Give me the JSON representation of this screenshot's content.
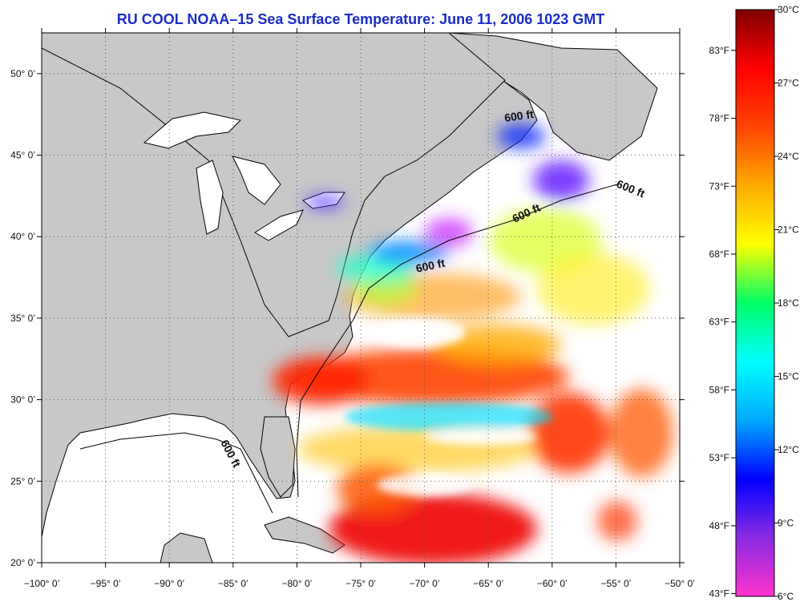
{
  "title": "RU COOL  NOAA–15  Sea Surface Temperature:  June 11, 2006 1023 GMT",
  "map": {
    "lon_range": [
      -100,
      -50
    ],
    "lat_range": [
      20,
      52.5
    ],
    "lon_labels": [
      "−100° 0’",
      "−95° 0’",
      "−90° 0’",
      "−85° 0’",
      "−80° 0’",
      "−75° 0’",
      "−70° 0’",
      "−65° 0’",
      "−60° 0’",
      "−55° 0’",
      "−50° 0’"
    ],
    "lon_values": [
      -100,
      -95,
      -90,
      -85,
      -80,
      -75,
      -70,
      -65,
      -60,
      -55,
      -50
    ],
    "lat_labels": [
      "20° 0’",
      "25° 0’",
      "30° 0’",
      "35° 0’",
      "40° 0’",
      "45° 0’",
      "50° 0’"
    ],
    "lat_values": [
      20,
      25,
      30,
      35,
      40,
      45,
      50
    ],
    "land_color": "#c8c8c8",
    "water_color": "#ffffff",
    "depth_contour_label": "600 ft"
  },
  "colorbar": {
    "celsius_labels": [
      "30°C",
      "27°C",
      "24°C",
      "21°C",
      "18°C",
      "15°C",
      "12°C",
      "9°C",
      "6°C"
    ],
    "celsius_values": [
      30,
      27,
      24,
      21,
      18,
      15,
      12,
      9,
      6
    ],
    "fahrenheit_labels": [
      "83°F",
      "78°F",
      "73°F",
      "68°F",
      "63°F",
      "58°F",
      "53°F",
      "48°F",
      "43°F"
    ],
    "fahrenheit_values": [
      83,
      78,
      73,
      68,
      63,
      58,
      53,
      48,
      43
    ],
    "range_c": [
      6,
      30
    ],
    "stops": [
      "#ff33cc",
      "#8a2be2",
      "#0000ff",
      "#00aaff",
      "#00ffff",
      "#00ff66",
      "#ffff00",
      "#ffaa00",
      "#ff4400",
      "#ff0000",
      "#800000"
    ]
  }
}
